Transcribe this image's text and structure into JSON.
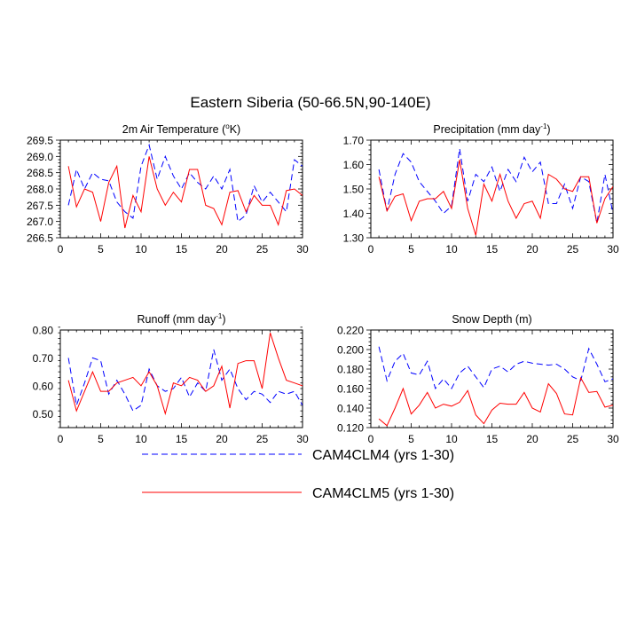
{
  "title": "Eastern Siberia (50-66.5N,90-140E)",
  "legend": [
    {
      "label": "CAM4CLM4 (yrs 1-30)",
      "color": "#0000ff",
      "dash": "dashed"
    },
    {
      "label": "CAM4CLM5 (yrs 1-30)",
      "color": "#ff0000",
      "dash": "solid"
    }
  ],
  "chart_data": [
    {
      "type": "line",
      "title": "2m Air Temperature (°K)",
      "title_parts": [
        "2m Air Temperature (",
        "o",
        "K)"
      ],
      "xlim": [
        0,
        30
      ],
      "ylim": [
        266.5,
        269.5
      ],
      "xticks": [
        0,
        5,
        10,
        15,
        20,
        25,
        30
      ],
      "yticks": [
        266.5,
        267.0,
        267.5,
        268.0,
        268.5,
        269.0,
        269.5
      ],
      "yticklabels": [
        "266.5",
        "267.0",
        "267.5",
        "268.0",
        "268.5",
        "269.0",
        "269.5"
      ],
      "x": [
        1,
        2,
        3,
        4,
        5,
        6,
        7,
        8,
        9,
        10,
        11,
        12,
        13,
        14,
        15,
        16,
        17,
        18,
        19,
        20,
        21,
        22,
        23,
        24,
        25,
        26,
        27,
        28,
        29,
        30
      ],
      "series": [
        {
          "name": "CAM4CLM4 (yrs 1-30)",
          "values": [
            267.5,
            268.6,
            268.0,
            268.5,
            268.3,
            268.25,
            267.6,
            267.3,
            267.1,
            268.7,
            269.35,
            268.3,
            269.0,
            268.4,
            268.0,
            268.5,
            268.2,
            268.0,
            268.4,
            268.0,
            268.6,
            267.0,
            267.2,
            268.1,
            267.6,
            267.9,
            267.6,
            267.3,
            268.9,
            268.7
          ]
        },
        {
          "name": "CAM4CLM5 (yrs 1-30)",
          "values": [
            268.7,
            267.45,
            268.0,
            267.9,
            267.0,
            268.2,
            268.7,
            266.8,
            267.8,
            267.3,
            269.0,
            268.0,
            267.5,
            267.9,
            267.6,
            268.6,
            268.6,
            267.5,
            267.4,
            266.9,
            267.9,
            267.95,
            267.3,
            267.8,
            267.5,
            267.5,
            266.9,
            267.95,
            268.0,
            267.8
          ]
        }
      ]
    },
    {
      "type": "line",
      "title": "Precipitation (mm day⁻¹)",
      "title_parts": [
        "Precipitation (mm day",
        "-1",
        ")"
      ],
      "xlim": [
        0,
        30
      ],
      "ylim": [
        1.3,
        1.7
      ],
      "xticks": [
        0,
        5,
        10,
        15,
        20,
        25,
        30
      ],
      "yticks": [
        1.3,
        1.4,
        1.5,
        1.6,
        1.7
      ],
      "yticklabels": [
        "1.30",
        "1.40",
        "1.50",
        "1.60",
        "1.70"
      ],
      "x": [
        1,
        2,
        3,
        4,
        5,
        6,
        7,
        8,
        9,
        10,
        11,
        12,
        13,
        14,
        15,
        16,
        17,
        18,
        19,
        20,
        21,
        22,
        23,
        24,
        25,
        26,
        27,
        28,
        29,
        30
      ],
      "series": [
        {
          "name": "CAM4CLM4 (yrs 1-30)",
          "values": [
            1.58,
            1.41,
            1.56,
            1.645,
            1.61,
            1.53,
            1.49,
            1.45,
            1.4,
            1.43,
            1.665,
            1.45,
            1.56,
            1.53,
            1.59,
            1.49,
            1.58,
            1.53,
            1.63,
            1.57,
            1.61,
            1.44,
            1.44,
            1.52,
            1.42,
            1.55,
            1.53,
            1.36,
            1.56,
            1.4
          ]
        },
        {
          "name": "CAM4CLM5 (yrs 1-30)",
          "values": [
            1.55,
            1.41,
            1.47,
            1.48,
            1.37,
            1.45,
            1.46,
            1.46,
            1.49,
            1.42,
            1.62,
            1.42,
            1.31,
            1.52,
            1.45,
            1.56,
            1.45,
            1.38,
            1.44,
            1.45,
            1.38,
            1.56,
            1.54,
            1.5,
            1.49,
            1.55,
            1.55,
            1.36,
            1.46,
            1.51
          ]
        }
      ]
    },
    {
      "type": "line",
      "title": "Runoff (mm day⁻¹)",
      "title_parts": [
        "Runoff (mm day",
        "-1",
        ")"
      ],
      "xlim": [
        0,
        30
      ],
      "ylim": [
        0.45,
        0.8
      ],
      "xticks": [
        0,
        5,
        10,
        15,
        20,
        25,
        30
      ],
      "yticks": [
        0.5,
        0.6,
        0.7,
        0.8
      ],
      "yticklabels": [
        "0.50",
        "0.60",
        "0.70",
        "0.80"
      ],
      "x": [
        1,
        2,
        3,
        4,
        5,
        6,
        7,
        8,
        9,
        10,
        11,
        12,
        13,
        14,
        15,
        16,
        17,
        18,
        19,
        20,
        21,
        22,
        23,
        24,
        25,
        26,
        27,
        28,
        29,
        30
      ],
      "series": [
        {
          "name": "CAM4CLM4 (yrs 1-30)",
          "values": [
            0.7,
            0.53,
            0.61,
            0.7,
            0.69,
            0.57,
            0.62,
            0.57,
            0.51,
            0.53,
            0.66,
            0.6,
            0.58,
            0.59,
            0.63,
            0.56,
            0.61,
            0.58,
            0.73,
            0.62,
            0.66,
            0.59,
            0.55,
            0.58,
            0.57,
            0.54,
            0.58,
            0.57,
            0.58,
            0.53
          ]
        },
        {
          "name": "CAM4CLM5 (yrs 1-30)",
          "values": [
            0.62,
            0.51,
            0.58,
            0.65,
            0.58,
            0.58,
            0.61,
            0.62,
            0.63,
            0.6,
            0.65,
            0.6,
            0.5,
            0.61,
            0.6,
            0.63,
            0.62,
            0.58,
            0.6,
            0.67,
            0.52,
            0.68,
            0.69,
            0.69,
            0.59,
            0.79,
            0.7,
            0.62,
            0.61,
            0.6
          ]
        }
      ]
    },
    {
      "type": "line",
      "title": "Snow Depth (m)",
      "title_parts": [
        "Snow Depth (m)"
      ],
      "xlim": [
        0,
        30
      ],
      "ylim": [
        0.12,
        0.22
      ],
      "xticks": [
        0,
        5,
        10,
        15,
        20,
        25,
        30
      ],
      "yticks": [
        0.12,
        0.14,
        0.16,
        0.18,
        0.2,
        0.22
      ],
      "yticklabels": [
        "0.120",
        "0.140",
        "0.160",
        "0.180",
        "0.200",
        "0.220"
      ],
      "x": [
        1,
        2,
        3,
        4,
        5,
        6,
        7,
        8,
        9,
        10,
        11,
        12,
        13,
        14,
        15,
        16,
        17,
        18,
        19,
        20,
        21,
        22,
        23,
        24,
        25,
        26,
        27,
        28,
        29,
        30
      ],
      "series": [
        {
          "name": "CAM4CLM4 (yrs 1-30)",
          "values": [
            0.203,
            0.168,
            0.188,
            0.196,
            0.176,
            0.174,
            0.188,
            0.16,
            0.17,
            0.16,
            0.176,
            0.183,
            0.172,
            0.161,
            0.18,
            0.183,
            0.177,
            0.185,
            0.188,
            0.186,
            0.185,
            0.184,
            0.185,
            0.18,
            0.172,
            0.168,
            0.201,
            0.185,
            0.167,
            0.17
          ]
        },
        {
          "name": "CAM4CLM5 (yrs 1-30)",
          "values": [
            0.129,
            0.122,
            0.14,
            0.16,
            0.134,
            0.143,
            0.156,
            0.14,
            0.144,
            0.142,
            0.146,
            0.158,
            0.133,
            0.124,
            0.138,
            0.145,
            0.144,
            0.144,
            0.156,
            0.14,
            0.136,
            0.165,
            0.155,
            0.134,
            0.133,
            0.171,
            0.156,
            0.157,
            0.141,
            0.143
          ]
        }
      ]
    }
  ]
}
